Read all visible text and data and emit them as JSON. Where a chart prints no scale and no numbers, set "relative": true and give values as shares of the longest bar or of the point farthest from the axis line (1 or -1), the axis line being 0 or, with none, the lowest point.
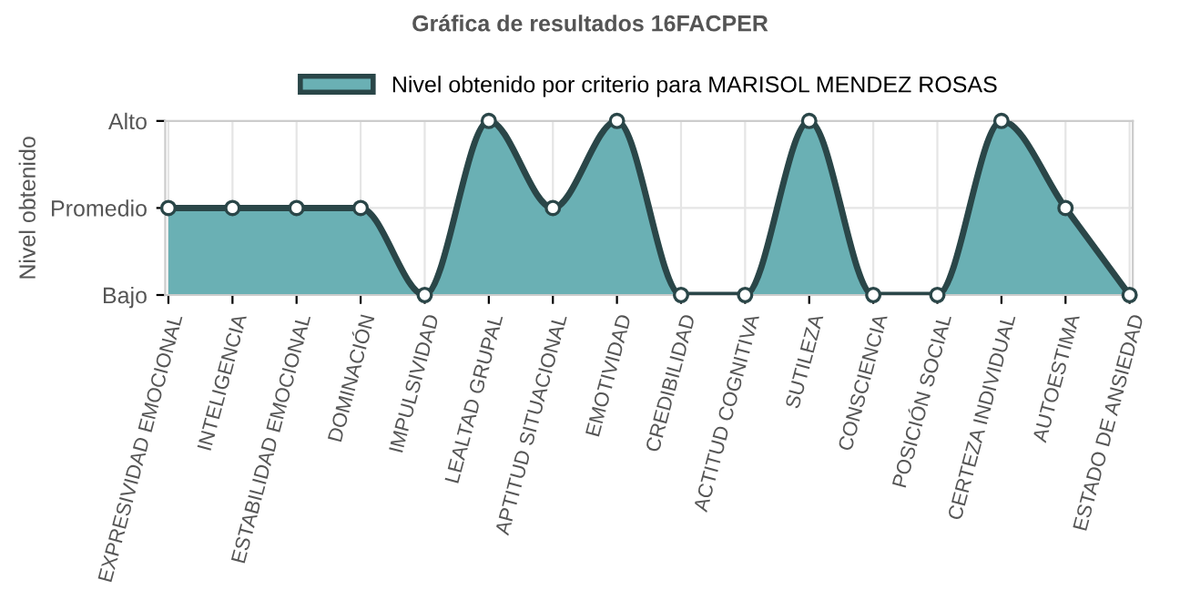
{
  "chart_data": {
    "type": "area",
    "title": "Gráfica de resultados 16FACPER",
    "ylabel": "Nivel obtenido",
    "categories": [
      "EXPRESIVIDAD EMOCIONAL",
      "INTELIGENCIA",
      "ESTABILIDAD EMOCIONAL",
      "DOMINACIÓN",
      "IMPULSIVIDAD",
      "LEALTAD GRUPAL",
      "APTITUD SITUACIONAL",
      "EMOTIVIDAD",
      "CREDIBILIDAD",
      "ACTITUD COGNITIVA",
      "SUTILEZA",
      "CONSCIENCIA",
      "POSICIÓN SOCIAL",
      "CERTEZA INDIVIDUAL",
      "AUTOESTIMA",
      "ESTADO DE ANSIEDAD"
    ],
    "series": [
      {
        "name": "Nivel obtenido por criterio para MARISOL MENDEZ ROSAS",
        "color": "#6ab0b4",
        "values": [
          0.5,
          0.5,
          0.5,
          0.5,
          0,
          1,
          0.5,
          1,
          0,
          0,
          1,
          0,
          0,
          1,
          0.5,
          0
        ]
      }
    ],
    "relative": true,
    "annotations": [
      "Bajo",
      "Promedio",
      "Alto"
    ],
    "grid": true,
    "legend": "top",
    "marker": "circle",
    "line_style": "solid"
  }
}
